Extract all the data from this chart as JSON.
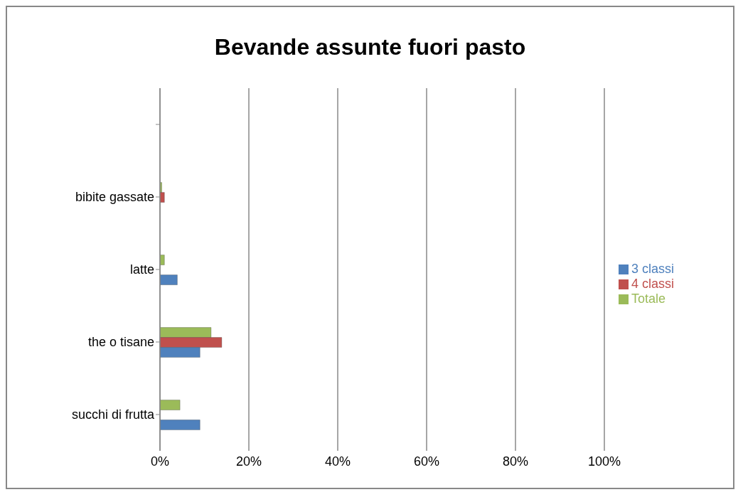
{
  "chart_data": {
    "type": "bar",
    "orientation": "horizontal",
    "title": "Bevande assunte fuori pasto",
    "categories": [
      null,
      "bibite gassate",
      "latte",
      "the o tisane",
      "succhi di frutta"
    ],
    "series": [
      {
        "name": "Totale",
        "color": "#9bbb59",
        "values": [
          null,
          0.4,
          1.0,
          11.5,
          4.5
        ]
      },
      {
        "name": "4 classi",
        "color": "#c0504d",
        "values": [
          null,
          1.0,
          null,
          13.9,
          null
        ]
      },
      {
        "name": "3 classi",
        "color": "#4f81bd",
        "values": [
          null,
          null,
          3.9,
          9.0,
          9.0
        ]
      }
    ],
    "xlim": [
      0,
      100
    ],
    "xticks": [
      {
        "value": 0,
        "label": "0%"
      },
      {
        "value": 20,
        "label": "20%"
      },
      {
        "value": 40,
        "label": "40%"
      },
      {
        "value": 60,
        "label": "60%"
      },
      {
        "value": 80,
        "label": "80%"
      },
      {
        "value": 100,
        "label": "100%"
      }
    ],
    "grid": "x",
    "legend": "right"
  }
}
